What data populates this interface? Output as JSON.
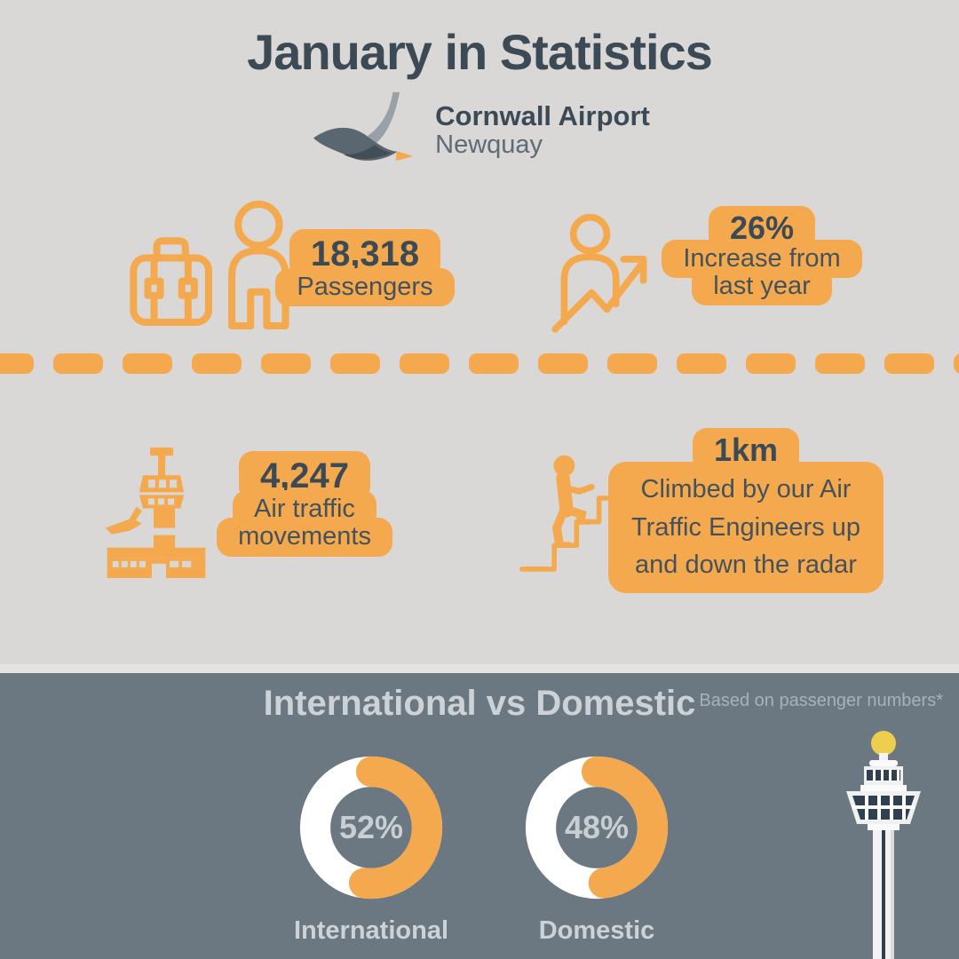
{
  "colors": {
    "orange": "#F5A94E",
    "slate": "#3B4A54",
    "body-text": "#44525C",
    "light-bg": "#D9D8D6",
    "bottom-bg": "#6B7881",
    "light-text": "#CDD2D6",
    "note-text": "#A8B1B8",
    "tower-window": "#2F4050",
    "tower-body": "#F2F3F2",
    "beacon": "#EDCE4F"
  },
  "header": {
    "title": "January in Statistics"
  },
  "logo": {
    "name": "Cornwall Airport",
    "subname": "Newquay"
  },
  "icons": {
    "stat_passengers": "passenger-luggage-icon",
    "stat_increase": "person-growth-arrow-icon",
    "stat_movements": "control-tower-plane-icon",
    "stat_radar": "stairs-climb-icon",
    "logo_bird": "bird-logo-icon",
    "bottom_tower": "airport-tower-illustration"
  },
  "stats": [
    {
      "value": "18,318",
      "lines": [
        "Passengers"
      ]
    },
    {
      "value": "26%",
      "lines": [
        "Increase from",
        "last year"
      ]
    },
    {
      "value": "4,247",
      "lines": [
        "Air traffic",
        "movements"
      ]
    },
    {
      "value": "1km",
      "lines": [
        "Climbed by our Air",
        "Traffic Engineers up",
        "and down the radar"
      ]
    }
  ],
  "bottom": {
    "heading": "International vs Domestic",
    "note": "Based on passenger numbers*"
  },
  "chart_data": [
    {
      "type": "pie",
      "subtype": "donut",
      "title": "International",
      "categories": [
        "International",
        "Remainder"
      ],
      "values": [
        52,
        48
      ],
      "center_label": "52%",
      "colors": {
        "value": "#F5A94E",
        "rest": "#FFFFFF"
      },
      "legend_position": "below"
    },
    {
      "type": "pie",
      "subtype": "donut",
      "title": "Domestic",
      "categories": [
        "Domestic",
        "Remainder"
      ],
      "values": [
        48,
        52
      ],
      "center_label": "48%",
      "colors": {
        "value": "#F5A94E",
        "rest": "#FFFFFF"
      },
      "legend_position": "below"
    }
  ]
}
